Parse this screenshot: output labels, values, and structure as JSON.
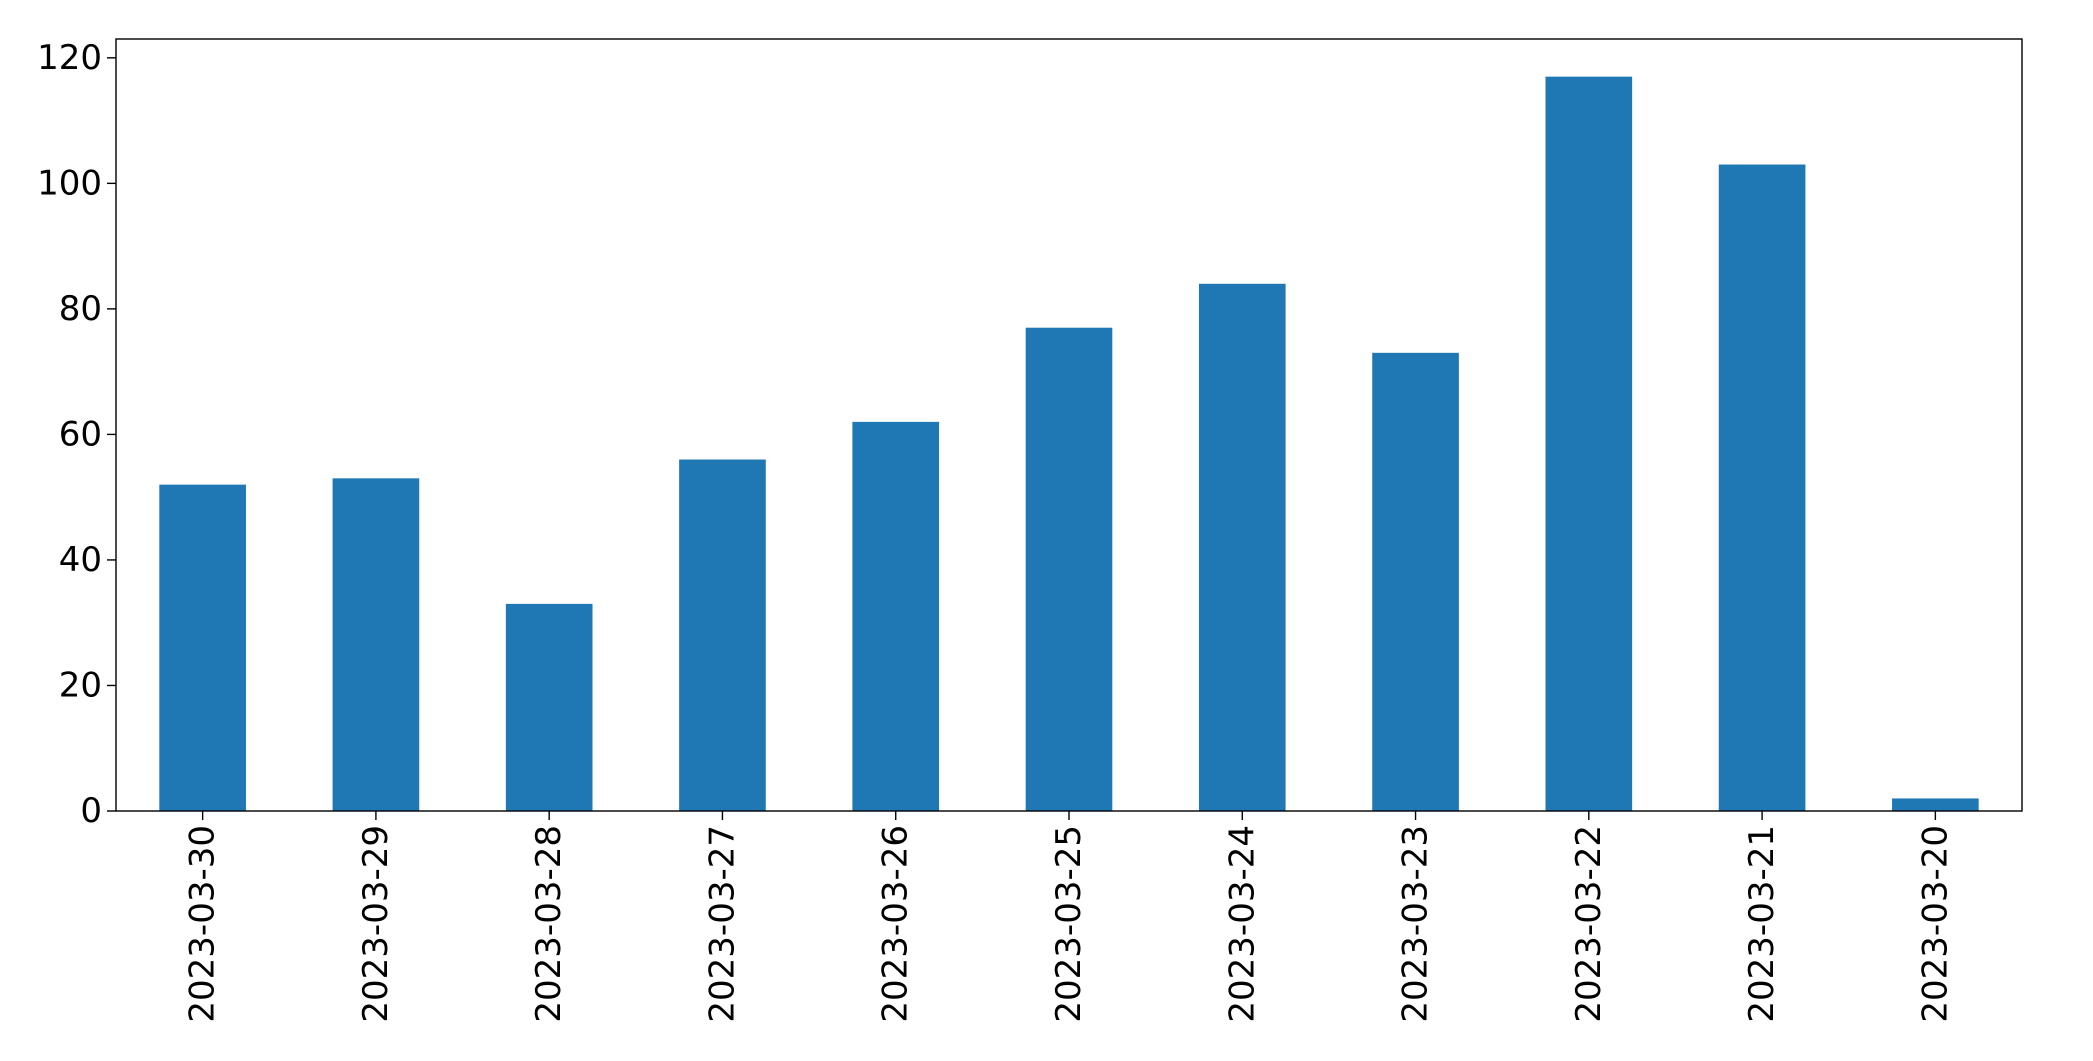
{
  "chart_data": {
    "type": "bar",
    "categories": [
      "2023-03-30",
      "2023-03-29",
      "2023-03-28",
      "2023-03-27",
      "2023-03-26",
      "2023-03-25",
      "2023-03-24",
      "2023-03-23",
      "2023-03-22",
      "2023-03-21",
      "2023-03-20"
    ],
    "values": [
      52,
      53,
      33,
      56,
      62,
      77,
      84,
      73,
      117,
      103,
      2
    ],
    "ylim": [
      0,
      123
    ],
    "yticks": [
      0,
      20,
      40,
      60,
      80,
      100,
      120
    ],
    "grid": false,
    "legend": "none",
    "bar_color": "#1f77b4"
  }
}
